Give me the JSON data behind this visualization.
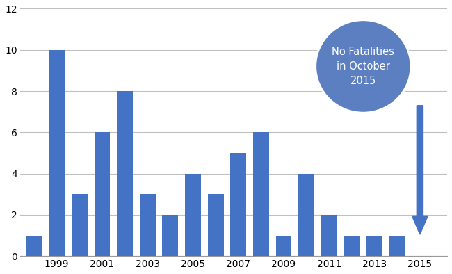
{
  "years": [
    1998,
    1999,
    2000,
    2001,
    2002,
    2003,
    2004,
    2005,
    2006,
    2007,
    2008,
    2009,
    2010,
    2011,
    2012,
    2013,
    2014,
    2015
  ],
  "values": [
    1,
    10,
    3,
    6,
    8,
    3,
    2,
    4,
    3,
    5,
    6,
    1,
    4,
    2,
    1,
    1,
    1,
    0
  ],
  "bar_color": "#4472C4",
  "background_color": "#FFFFFF",
  "ylim": [
    0,
    12
  ],
  "yticks": [
    0,
    2,
    4,
    6,
    8,
    10,
    12
  ],
  "annotation_text": "No Fatalities\nin October\n2015",
  "annotation_color": "#5B7FC0",
  "annotation_text_color": "#FFFFFF",
  "arrow_color": "#4472C4",
  "grid_color": "#C0C0C0",
  "xtick_labels": [
    "1999",
    "2001",
    "2003",
    "2005",
    "2007",
    "2009",
    "2011",
    "2013",
    "2015"
  ],
  "xtick_year_positions": [
    1999,
    2001,
    2003,
    2005,
    2007,
    2009,
    2011,
    2013,
    2015
  ]
}
